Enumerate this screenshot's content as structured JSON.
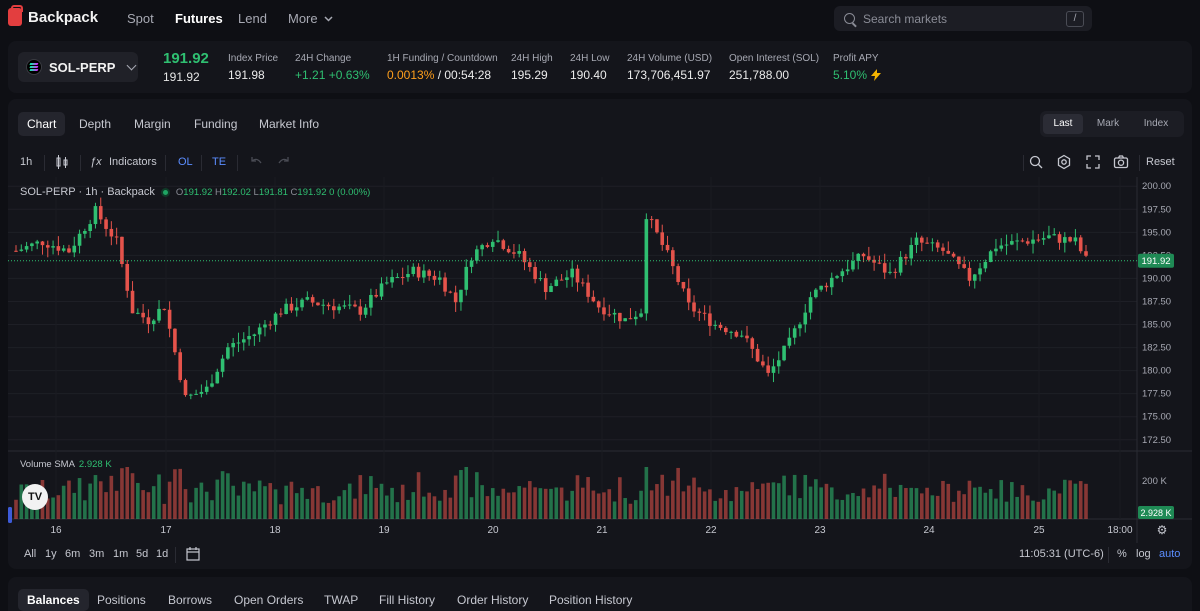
{
  "app": {
    "name": "Backpack"
  },
  "nav": {
    "spot": "Spot",
    "futures": "Futures",
    "lend": "Lend",
    "more": "More"
  },
  "search": {
    "placeholder": "Search markets",
    "shortcut": "/"
  },
  "ticker": {
    "market": "SOL-PERP",
    "last_price": "191.92",
    "mark_price": "191.92",
    "stats": [
      {
        "label": "Index Price",
        "value": "191.98"
      },
      {
        "label": "24H Change",
        "value": "+1.21 +0.63%"
      },
      {
        "label": "1H Funding / Countdown",
        "value_funding": "0.0013%",
        "value_countdown": " / 00:54:28"
      },
      {
        "label": "24H High",
        "value": "195.29"
      },
      {
        "label": "24H Low",
        "value": "190.40"
      },
      {
        "label": "24H Volume (USD)",
        "value": "173,706,451.97"
      },
      {
        "label": "Open Interest (SOL)",
        "value": "251,788.00"
      },
      {
        "label": "Profit APY",
        "value": "5.10%"
      }
    ]
  },
  "chart_tabs": [
    "Chart",
    "Depth",
    "Margin",
    "Funding",
    "Market Info"
  ],
  "price_type": [
    "Last",
    "Mark",
    "Index"
  ],
  "toolbar": {
    "interval": "1h",
    "indicators": "Indicators",
    "ol": "OL",
    "te": "TE",
    "reset": "Reset"
  },
  "legend": {
    "title": "SOL-PERP · 1h · Backpack",
    "o": "191.92",
    "h": "192.02",
    "l": "191.81",
    "c": "191.92",
    "chg": "0 (0.00%)"
  },
  "volume_legend": {
    "label": "Volume SMA",
    "value": "2.928 K"
  },
  "tv_badge": "TV",
  "ranges": [
    "All",
    "1y",
    "6m",
    "3m",
    "1m",
    "5d",
    "1d"
  ],
  "footer": {
    "time": "11:05:31 (UTC-6)",
    "pct": "%",
    "log": "log",
    "auto": "auto"
  },
  "bottom_tabs": [
    "Balances",
    "Positions",
    "Borrows",
    "Open Orders",
    "TWAP",
    "Fill History",
    "Order History",
    "Position History"
  ],
  "colors": {
    "up": "#2fbf71",
    "down": "#e5534b",
    "accent": "#5b8dff",
    "bg": "#14151b"
  },
  "chart_data": {
    "type": "candlestick",
    "title": "SOL-PERP · 1h · Backpack",
    "x_ticks": [
      "16",
      "17",
      "18",
      "19",
      "20",
      "21",
      "22",
      "23",
      "24",
      "25",
      "18:00"
    ],
    "y_ticks": [
      "200.00",
      "197.50",
      "195.00",
      "192.50",
      "190.00",
      "187.50",
      "185.00",
      "182.50",
      "180.00",
      "177.50",
      "175.00",
      "172.50"
    ],
    "ylim": [
      171.5,
      201.0
    ],
    "last_price_label": "191.92",
    "volume_axis_tick": "200 K",
    "volume_last_label": "2.928 K",
    "close_path": [
      [
        0,
        193.0
      ],
      [
        5,
        194.0
      ],
      [
        10,
        193.0
      ],
      [
        15,
        197.3
      ],
      [
        19,
        194.0
      ],
      [
        22,
        186.5
      ],
      [
        25,
        185.5
      ],
      [
        28,
        187.0
      ],
      [
        32,
        177.0
      ],
      [
        36,
        178.0
      ],
      [
        40,
        182.5
      ],
      [
        45,
        184.0
      ],
      [
        50,
        186.5
      ],
      [
        55,
        187.5
      ],
      [
        60,
        187.0
      ],
      [
        65,
        186.5
      ],
      [
        70,
        189.5
      ],
      [
        75,
        190.8
      ],
      [
        80,
        190.0
      ],
      [
        83,
        187.5
      ],
      [
        86,
        192.5
      ],
      [
        90,
        194.5
      ],
      [
        95,
        192.5
      ],
      [
        100,
        189.0
      ],
      [
        105,
        190.5
      ],
      [
        110,
        187.0
      ],
      [
        115,
        185.5
      ],
      [
        118,
        186.5
      ],
      [
        119,
        197.0
      ],
      [
        123,
        192.5
      ],
      [
        127,
        187.0
      ],
      [
        132,
        185.0
      ],
      [
        137,
        184.0
      ],
      [
        142,
        179.5
      ],
      [
        146,
        183.0
      ],
      [
        150,
        188.0
      ],
      [
        155,
        190.5
      ],
      [
        160,
        192.5
      ],
      [
        165,
        190.5
      ],
      [
        170,
        194.0
      ],
      [
        175,
        193.0
      ],
      [
        180,
        190.0
      ],
      [
        185,
        193.5
      ],
      [
        190,
        194.0
      ],
      [
        195,
        194.5
      ],
      [
        200,
        194.0
      ],
      [
        202,
        192.0
      ]
    ]
  }
}
